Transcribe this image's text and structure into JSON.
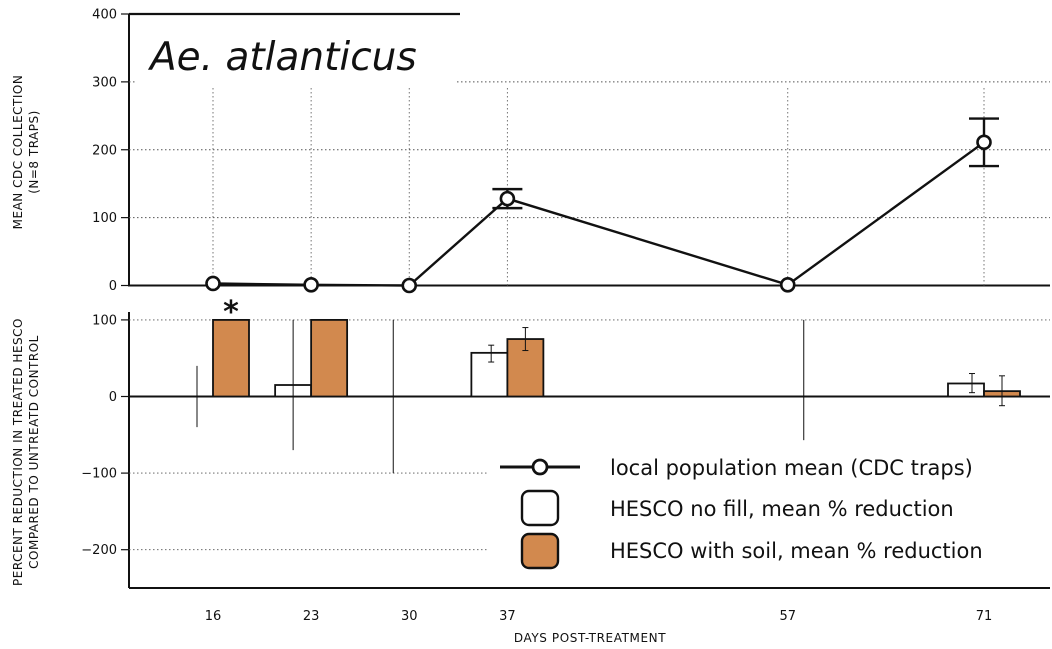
{
  "chart_data": [
    {
      "type": "line",
      "title": "Ae. atlanticus",
      "ylabel": [
        "MEAN CDC COLLECTION",
        "(N=8 TRAPS)"
      ],
      "ylim": [
        0,
        400
      ],
      "yticks": [
        "0",
        "100",
        "200",
        "300",
        "400"
      ],
      "x": [
        16,
        23,
        30,
        37,
        57,
        71
      ],
      "series": [
        {
          "name": "local population mean (CDC traps)",
          "values": [
            3,
            1,
            0,
            128,
            1,
            211
          ],
          "error": [
            0,
            0,
            0,
            14,
            0,
            35
          ]
        }
      ]
    },
    {
      "type": "bar",
      "ylabel": [
        "PERCENT REDUCTION IN TREATED HESCO",
        "COMPARED TO UNTREATD CONTROL"
      ],
      "xlabel": "DAYS POST-TREATMENT",
      "ylim": [
        -250,
        105
      ],
      "yticks": [
        "100",
        "0",
        "−100",
        "−200"
      ],
      "categories": [
        "16",
        "23",
        "30",
        "37",
        "57",
        "71"
      ],
      "series": [
        {
          "name": "HESCO no fill, mean % reduction",
          "color": "#ffffff",
          "values": [
            null,
            15,
            null,
            57,
            null,
            17
          ],
          "error_low": [
            -40,
            -70,
            -100,
            45,
            -57,
            5
          ],
          "error_high": [
            40,
            100,
            100,
            67,
            100,
            30
          ]
        },
        {
          "name": "HESCO with soil, mean % reduction",
          "color": "#d2894e",
          "values": [
            100,
            100,
            null,
            75,
            null,
            7
          ],
          "error_low": [
            null,
            null,
            null,
            60,
            null,
            -12
          ],
          "error_high": [
            null,
            null,
            null,
            90,
            null,
            27
          ]
        }
      ],
      "annotations": [
        {
          "category": "16",
          "text": "*"
        }
      ]
    }
  ],
  "legend": {
    "line_label": "local population mean (CDC traps)",
    "nofill_label": "HESCO no fill, mean % reduction",
    "soil_label": "HESCO with soil, mean % reduction"
  }
}
